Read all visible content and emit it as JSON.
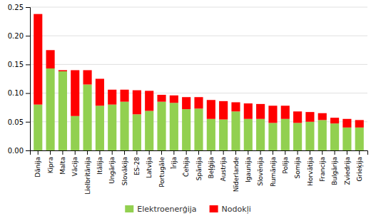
{
  "chart_data": {
    "type": "bar",
    "stacked": true,
    "grid": true,
    "legend": "bottom",
    "categories": [
      "Dānija",
      "Kipra",
      "Malta",
      "Vācija",
      "Lielbritānija",
      "Itālija",
      "Ungārija",
      "Slovākija",
      "ES-28",
      "Latvija",
      "Portugāle",
      "Īrija",
      "Čehija",
      "Spānija",
      "Beļģija",
      "Austrija",
      "Nīderlande",
      "Igaunija",
      "Slovēnija",
      "Rumānija",
      "Polija",
      "Somija",
      "Horvātija",
      "Francija",
      "Bulgārija",
      "Zviedrija",
      "Grieķija"
    ],
    "series": [
      {
        "name": "Elektroenerģija",
        "color": "#92d050",
        "values": [
          0.08,
          0.143,
          0.138,
          0.06,
          0.115,
          0.078,
          0.08,
          0.085,
          0.063,
          0.069,
          0.085,
          0.083,
          0.072,
          0.073,
          0.055,
          0.054,
          0.068,
          0.055,
          0.055,
          0.048,
          0.055,
          0.048,
          0.05,
          0.053,
          0.047,
          0.04,
          0.04
        ]
      },
      {
        "name": "Nodokļi",
        "color": "#ff0000",
        "values": [
          0.158,
          0.032,
          0.002,
          0.08,
          0.025,
          0.047,
          0.026,
          0.021,
          0.042,
          0.035,
          0.012,
          0.013,
          0.021,
          0.02,
          0.033,
          0.032,
          0.016,
          0.027,
          0.026,
          0.03,
          0.023,
          0.02,
          0.017,
          0.012,
          0.01,
          0.015,
          0.013
        ]
      }
    ],
    "ylim": [
      0,
      0.25
    ],
    "yticks": [
      {
        "value": 0,
        "label": "0.00"
      },
      0.05,
      {
        "value": 0.1,
        "label": "0.10"
      },
      0.15,
      {
        "value": 0.2,
        "label": "0.20"
      },
      0.25
    ]
  }
}
